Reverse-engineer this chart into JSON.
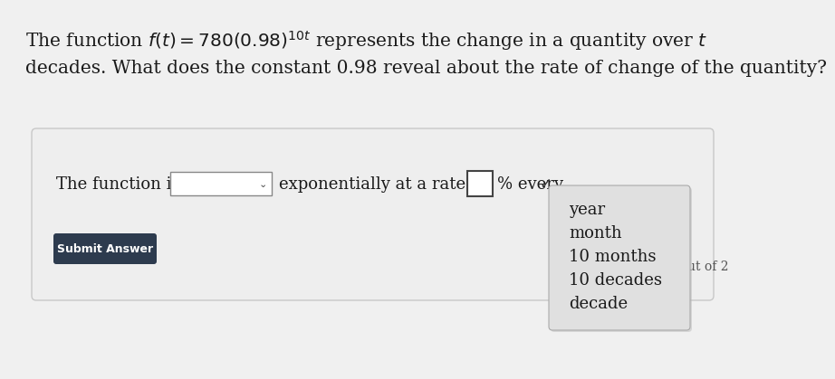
{
  "bg_color": "#f0f0f0",
  "white": "#ffffff",
  "text_color": "#1a1a1a",
  "panel_bg": "#eeeeee",
  "panel_border": "#c8c8c8",
  "dropdown_bg": "#e0e0e0",
  "dropdown_shadow": "#aaaaaa",
  "input_bg": "#ffffff",
  "input_border": "#888888",
  "button_bg": "#2d3b4e",
  "button_text_color": "#ffffff",
  "checkmark": "✓",
  "out_of_text": "ut of 2",
  "dropdown_options": [
    "year",
    "month",
    "10 months",
    "10 decades",
    "decade"
  ],
  "q_line1_plain": "The function ",
  "q_line1_math": "$f(t) = 780(0.98)^{10t}$",
  "q_line1_end": " represents the change in a quantity over ",
  "q_line1_t": "$t$",
  "q_line2": "decades. What does the constant 0.98 reveal about the rate of change of the quantity?",
  "answer_prompt": "The function is",
  "answer_middle": "exponentially at a rate of",
  "answer_end": "% every",
  "button_text": "Submit Answer"
}
